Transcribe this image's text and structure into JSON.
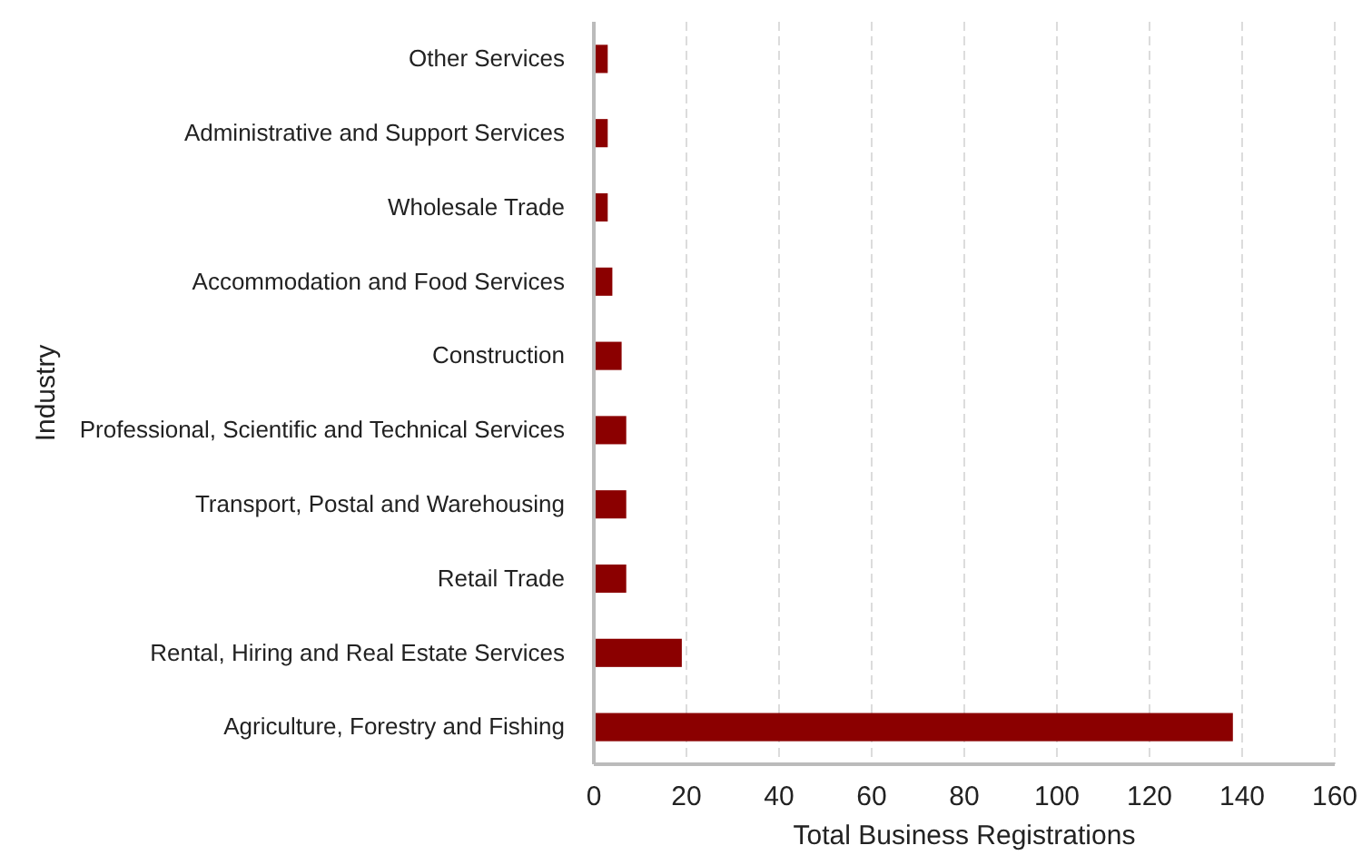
{
  "chart_data": {
    "type": "bar",
    "orientation": "horizontal",
    "xlabel": "Total Business Registrations",
    "ylabel": "Industry",
    "categories": [
      "Other Services",
      "Administrative and Support Services",
      "Wholesale Trade",
      "Accommodation and Food Services",
      "Construction",
      "Professional, Scientific and Technical Services",
      "Transport, Postal and Warehousing",
      "Retail Trade",
      "Rental, Hiring and Real Estate Services",
      "Agriculture, Forestry and Fishing"
    ],
    "values": [
      3,
      3,
      3,
      4,
      6,
      7,
      7,
      7,
      19,
      138
    ],
    "color": "#8b0000",
    "xlim": [
      0,
      160
    ],
    "xticks": [
      0,
      20,
      40,
      60,
      80,
      100,
      120,
      140,
      160
    ],
    "grid": "x"
  }
}
